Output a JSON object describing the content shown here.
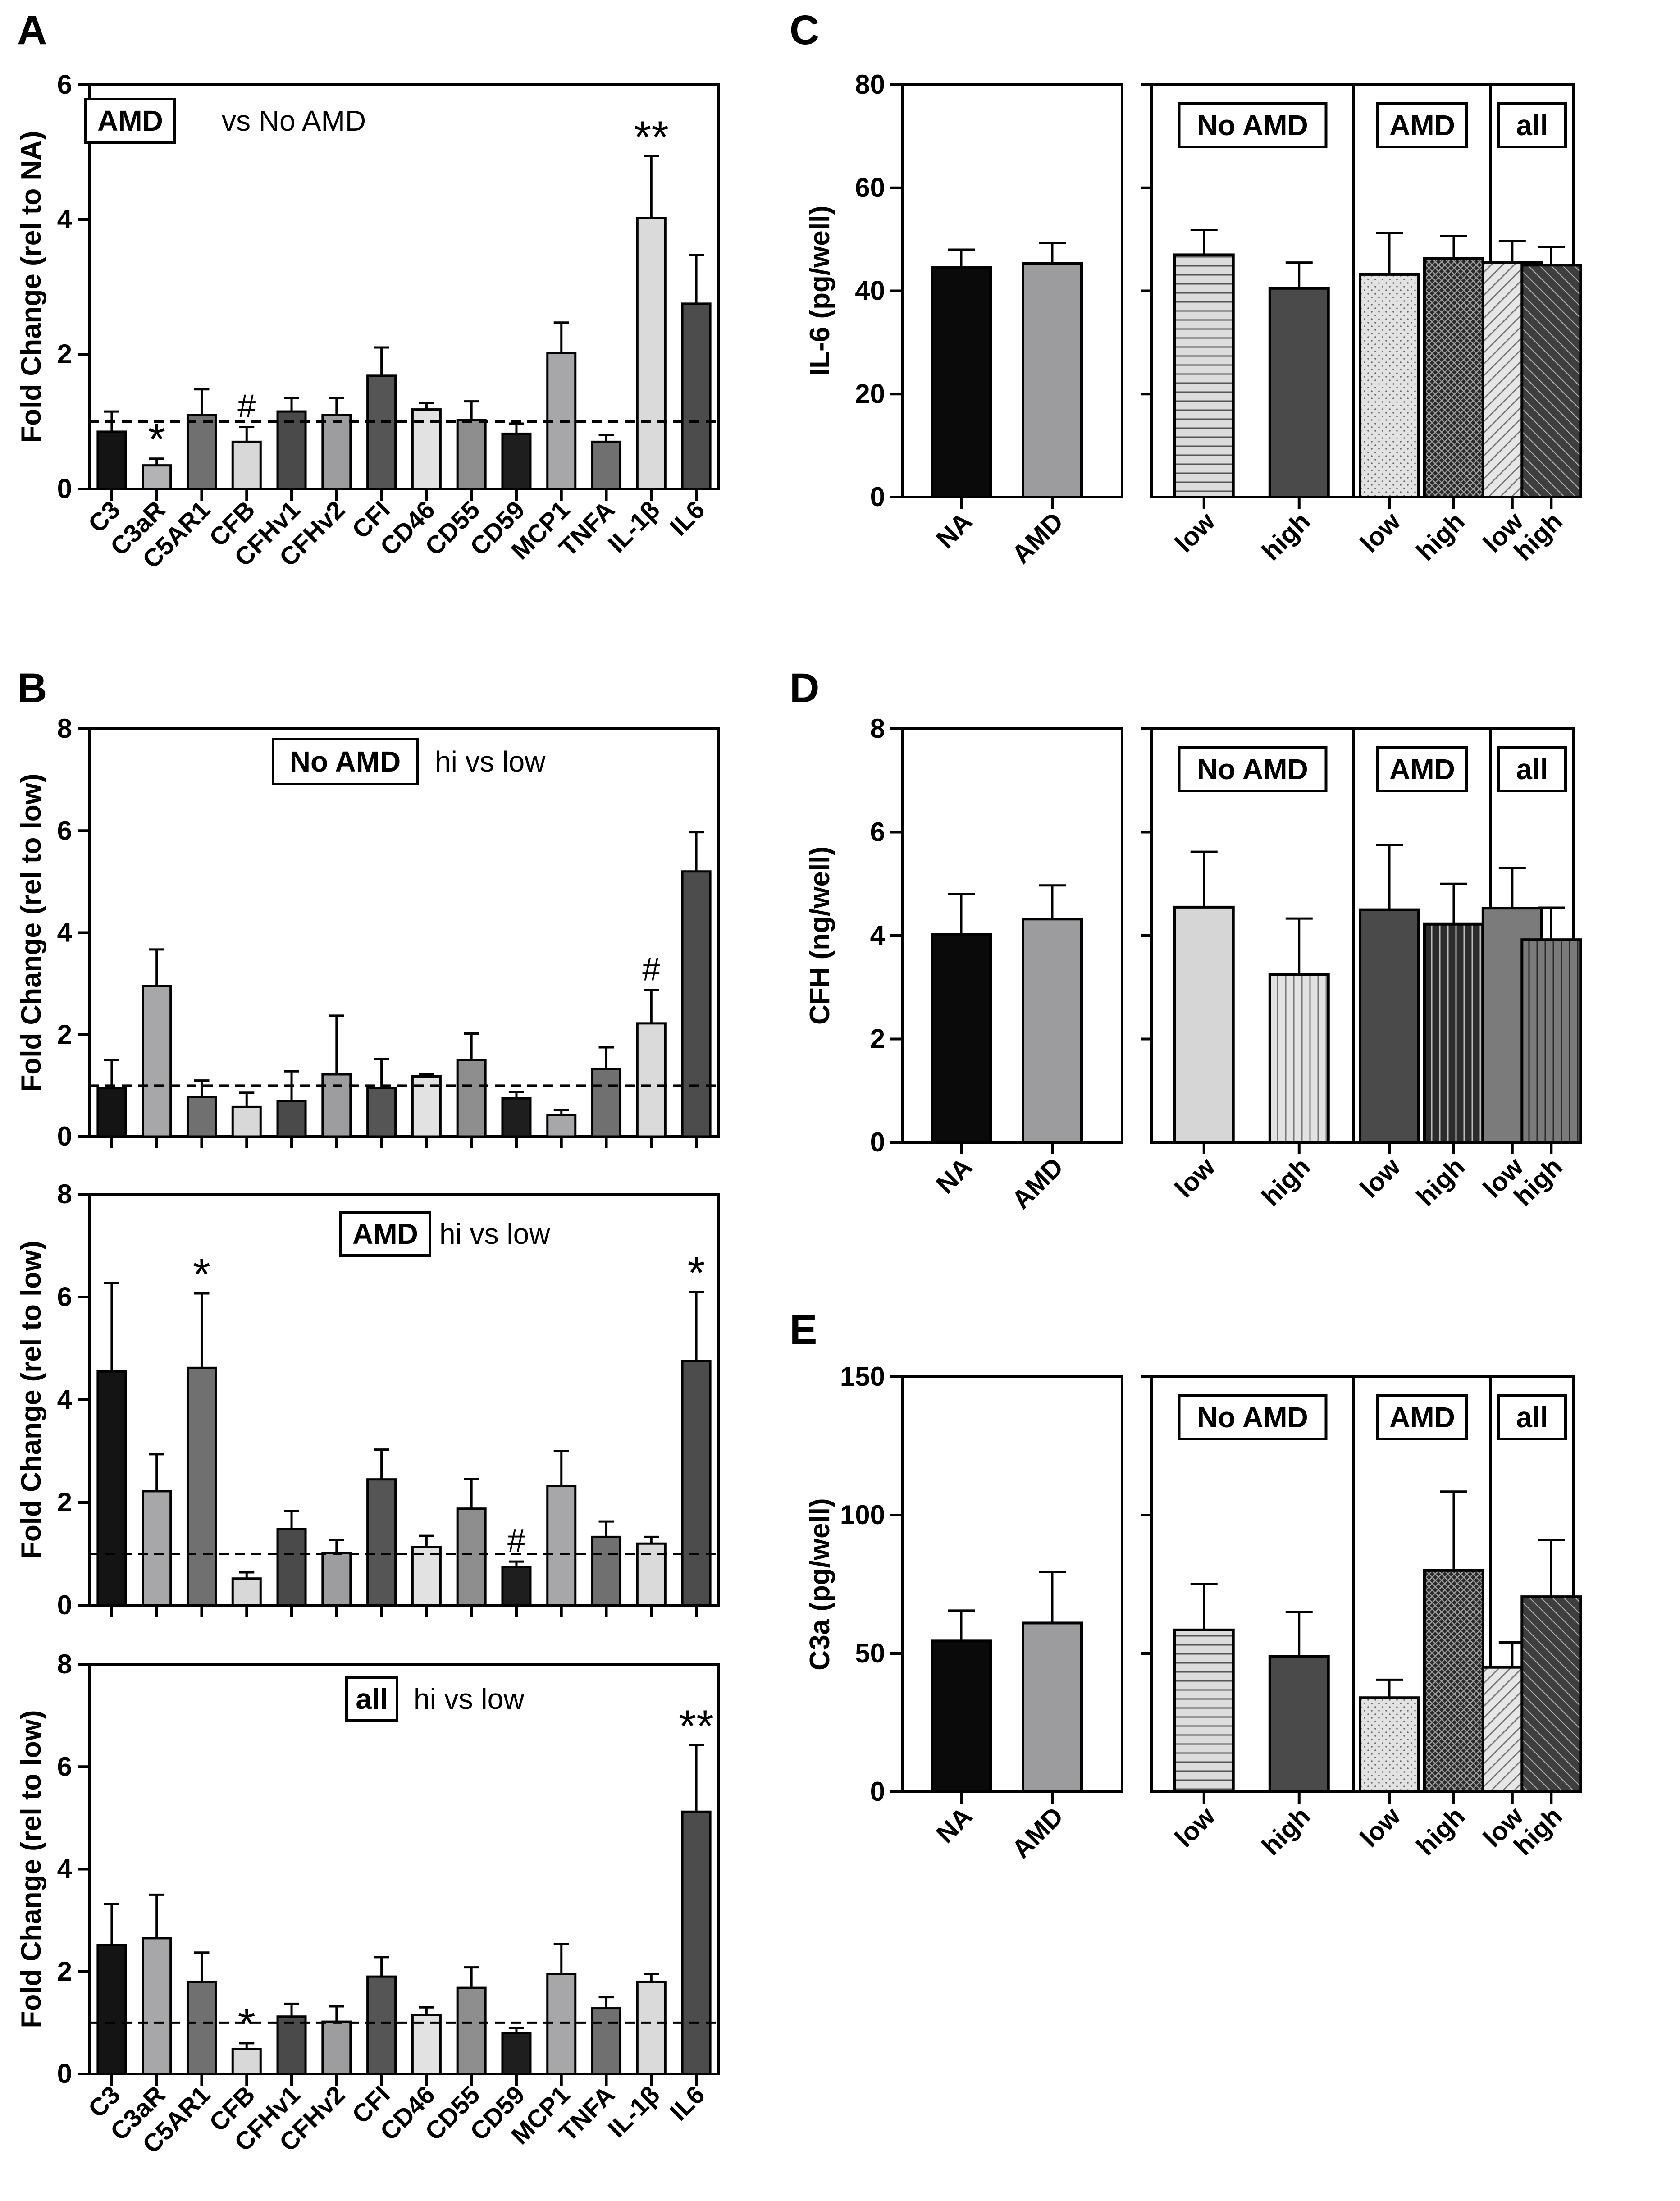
{
  "panel_letters": [
    "A",
    "B",
    "C",
    "D",
    "E"
  ],
  "chart_data": [
    {
      "id": "A",
      "type": "bar",
      "ylabel": "Fold Change (rel to NA)",
      "ylim": [
        0,
        6
      ],
      "yticks": [
        "0",
        "2",
        "4",
        "6"
      ],
      "categories": [
        "C3",
        "C3aR",
        "C5AR1",
        "CFB",
        "CFHv1",
        "CFHv2",
        "CFI",
        "CD46",
        "CD55",
        "CD59",
        "MCP1",
        "TNFA",
        "IL-1β",
        "IL6"
      ],
      "values": [
        0.85,
        0.35,
        1.1,
        0.7,
        1.15,
        1.1,
        1.68,
        1.18,
        1.02,
        0.82,
        2.02,
        0.7,
        4.02,
        2.75
      ],
      "errors": [
        0.3,
        0.1,
        0.38,
        0.22,
        0.2,
        0.25,
        0.42,
        0.1,
        0.28,
        0.15,
        0.45,
        0.1,
        0.92,
        0.72
      ],
      "colors": [
        "#141414",
        "#b3b3b5",
        "#707070",
        "#d8d8d8",
        "#4a4a4a",
        "#9d9da0",
        "#555555",
        "#e2e2e2",
        "#8e8e8e",
        "#1e1e1e",
        "#a7a7aa",
        "#707070",
        "#dadada",
        "#4c4c4c"
      ],
      "reference_line": 1,
      "legend": {
        "box": "AMD",
        "text": "vs No AMD"
      },
      "annotations": [
        {
          "category": "C3aR",
          "text": "*"
        },
        {
          "category": "CFB",
          "text": "#"
        },
        {
          "category": "IL-1β",
          "text": "**"
        }
      ],
      "show_xlabels": true
    },
    {
      "id": "B1",
      "type": "bar",
      "ylabel": "Fold Change (rel to low)",
      "ylim": [
        0,
        8
      ],
      "yticks": [
        "0",
        "2",
        "4",
        "6",
        "8"
      ],
      "categories": [
        "C3",
        "C3aR",
        "C5AR1",
        "CFB",
        "CFHv1",
        "CFHv2",
        "CFI",
        "CD46",
        "CD55",
        "CD59",
        "MCP1",
        "TNFA",
        "IL-1β",
        "IL6"
      ],
      "values": [
        0.95,
        2.95,
        0.78,
        0.58,
        0.7,
        1.22,
        0.95,
        1.18,
        1.5,
        0.75,
        0.42,
        1.33,
        2.22,
        5.2
      ],
      "errors": [
        0.55,
        0.72,
        0.32,
        0.28,
        0.58,
        1.15,
        0.57,
        0.05,
        0.52,
        0.13,
        0.1,
        0.42,
        0.65,
        0.77
      ],
      "colors": [
        "#141414",
        "#a7a7aa",
        "#707070",
        "#d8d8d8",
        "#4a4a4a",
        "#9d9da0",
        "#555555",
        "#e2e2e2",
        "#8e8e8e",
        "#1e1e1e",
        "#a7a7aa",
        "#707070",
        "#dadada",
        "#4c4c4c"
      ],
      "reference_line": 1,
      "legend": {
        "box": "No AMD",
        "text": "hi vs low"
      },
      "annotations": [
        {
          "category": "IL-1β",
          "text": "#"
        }
      ],
      "show_xlabels": false
    },
    {
      "id": "B2",
      "type": "bar",
      "ylabel": "Fold Change (rel to low)",
      "ylim": [
        0,
        8
      ],
      "yticks": [
        "0",
        "2",
        "4",
        "6",
        "8"
      ],
      "categories": [
        "C3",
        "C3aR",
        "C5AR1",
        "CFB",
        "CFHv1",
        "CFHv2",
        "CFI",
        "CD46",
        "CD55",
        "CD59",
        "MCP1",
        "TNFA",
        "IL-1β",
        "IL6"
      ],
      "values": [
        4.55,
        2.22,
        4.62,
        0.52,
        1.48,
        1.02,
        2.45,
        1.13,
        1.88,
        0.75,
        2.32,
        1.33,
        1.2,
        4.75
      ],
      "errors": [
        1.72,
        0.72,
        1.45,
        0.12,
        0.35,
        0.25,
        0.58,
        0.22,
        0.58,
        0.1,
        0.68,
        0.3,
        0.13,
        1.35
      ],
      "colors": [
        "#141414",
        "#a7a7aa",
        "#707070",
        "#d8d8d8",
        "#4a4a4a",
        "#9d9da0",
        "#555555",
        "#e2e2e2",
        "#8e8e8e",
        "#1e1e1e",
        "#a7a7aa",
        "#707070",
        "#dadada",
        "#4c4c4c"
      ],
      "reference_line": 1,
      "legend": {
        "box": "AMD",
        "text": "hi vs low"
      },
      "annotations": [
        {
          "category": "C5AR1",
          "text": "*"
        },
        {
          "category": "CD59",
          "text": "#"
        },
        {
          "category": "IL6",
          "text": "*"
        }
      ],
      "show_xlabels": false
    },
    {
      "id": "B3",
      "type": "bar",
      "ylabel": "Fold Change (rel to low)",
      "ylim": [
        0,
        8
      ],
      "yticks": [
        "0",
        "2",
        "4",
        "6",
        "8"
      ],
      "categories": [
        "C3",
        "C3aR",
        "C5AR1",
        "CFB",
        "CFHv1",
        "CFHv2",
        "CFI",
        "CD46",
        "CD55",
        "CD59",
        "MCP1",
        "TNFA",
        "IL-1β",
        "IL6"
      ],
      "values": [
        2.52,
        2.65,
        1.8,
        0.48,
        1.12,
        1.02,
        1.9,
        1.15,
        1.68,
        0.8,
        1.95,
        1.28,
        1.8,
        5.12
      ],
      "errors": [
        0.8,
        0.85,
        0.57,
        0.12,
        0.25,
        0.3,
        0.38,
        0.15,
        0.4,
        0.1,
        0.58,
        0.22,
        0.15,
        1.3
      ],
      "colors": [
        "#141414",
        "#a7a7aa",
        "#707070",
        "#d8d8d8",
        "#4a4a4a",
        "#9d9da0",
        "#555555",
        "#e2e2e2",
        "#8e8e8e",
        "#1e1e1e",
        "#a7a7aa",
        "#707070",
        "#dadada",
        "#4c4c4c"
      ],
      "reference_line": 1,
      "legend": {
        "box": "all",
        "text": "hi vs low"
      },
      "annotations": [
        {
          "category": "CFB",
          "text": "*"
        },
        {
          "category": "IL6",
          "text": "**"
        }
      ],
      "show_xlabels": true
    },
    {
      "id": "C",
      "type": "bar",
      "ylabel": "IL-6 (pg/well)",
      "ylim": [
        0,
        80
      ],
      "yticks": [
        "0",
        "20",
        "40",
        "60",
        "80"
      ],
      "left_categories": [
        "NA",
        "AMD"
      ],
      "left_values": [
        44.5,
        45.3
      ],
      "left_errors": [
        3.5,
        4.0
      ],
      "group_labels": [
        "No AMD",
        "AMD",
        "all"
      ],
      "right_categories": [
        "low",
        "high",
        "low",
        "high",
        "low",
        "high"
      ],
      "right_values": [
        47.0,
        40.5,
        43.2,
        46.3,
        45.5,
        45.0
      ],
      "right_errors": [
        4.8,
        5.0,
        8.0,
        4.3,
        4.2,
        3.5
      ],
      "right_patterns": [
        "hlines",
        "solid-dark",
        "dots",
        "cross",
        "diag-light",
        "diag-dark"
      ]
    },
    {
      "id": "D",
      "type": "bar",
      "ylabel": "CFH (ng/well)",
      "ylim": [
        0,
        8
      ],
      "yticks": [
        "0",
        "2",
        "4",
        "6",
        "8"
      ],
      "left_categories": [
        "NA",
        "AMD"
      ],
      "left_values": [
        4.02,
        4.32
      ],
      "left_errors": [
        0.78,
        0.65
      ],
      "group_labels": [
        "No AMD",
        "AMD",
        "all"
      ],
      "right_categories": [
        "low",
        "high",
        "low",
        "high",
        "low",
        "high"
      ],
      "right_values": [
        4.55,
        3.25,
        4.5,
        4.22,
        4.53,
        3.92
      ],
      "right_errors": [
        1.07,
        1.08,
        1.25,
        0.78,
        0.78,
        0.62
      ],
      "right_patterns": [
        "solid-light",
        "vlines-light",
        "solid-dark",
        "vlines-dark",
        "solid-mid",
        "vlines-mid"
      ]
    },
    {
      "id": "E",
      "type": "bar",
      "ylabel": "C3a (pg/well)",
      "ylim": [
        0,
        150
      ],
      "yticks": [
        "0",
        "50",
        "100",
        "150"
      ],
      "left_categories": [
        "NA",
        "AMD"
      ],
      "left_values": [
        54.5,
        61.0
      ],
      "left_errors": [
        11.0,
        18.5
      ],
      "group_labels": [
        "No AMD",
        "AMD",
        "all"
      ],
      "right_categories": [
        "low",
        "high",
        "low",
        "high",
        "low",
        "high"
      ],
      "right_values": [
        58.5,
        49.0,
        34.0,
        80.0,
        45.0,
        70.5
      ],
      "right_errors": [
        16.5,
        16.0,
        6.5,
        28.5,
        9.0,
        20.5
      ],
      "right_patterns": [
        "hlines",
        "solid-dark",
        "dots",
        "cross",
        "diag-light",
        "diag-dark"
      ]
    }
  ]
}
